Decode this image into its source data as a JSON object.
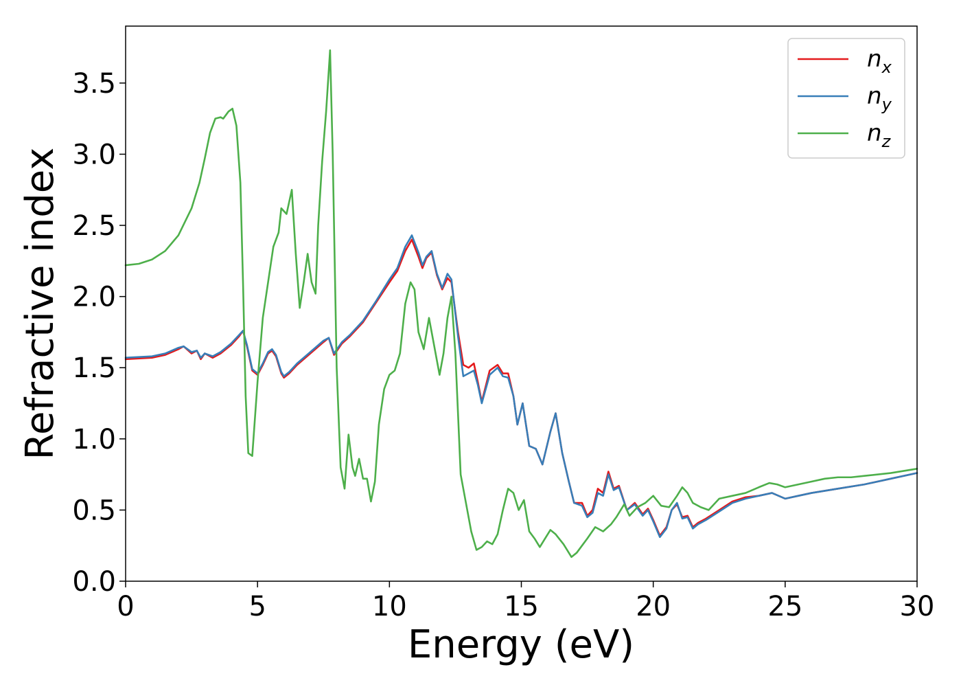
{
  "chart_data": {
    "type": "line",
    "xlabel": "Energy (eV)",
    "ylabel": "Refractive index",
    "xlim": [
      0,
      30
    ],
    "ylim": [
      0,
      3.9
    ],
    "xticks": [
      0,
      5,
      10,
      15,
      20,
      25,
      30
    ],
    "xtick_labels": [
      "0",
      "5",
      "10",
      "15",
      "20",
      "25",
      "30"
    ],
    "yticks": [
      0.0,
      0.5,
      1.0,
      1.5,
      2.0,
      2.5,
      3.0,
      3.5
    ],
    "ytick_labels": [
      "0.0",
      "0.5",
      "1.0",
      "1.5",
      "2.0",
      "2.5",
      "3.0",
      "3.5"
    ],
    "grid": false,
    "legend_position": "top-right",
    "series": [
      {
        "name": "n",
        "subscript": "x",
        "color": "#e41a1c",
        "x": [
          0,
          1,
          1.5,
          2,
          2.2,
          2.5,
          2.7,
          2.85,
          3,
          3.3,
          3.6,
          4,
          4.3,
          4.45,
          4.6,
          4.8,
          5,
          5.2,
          5.4,
          5.55,
          5.7,
          5.9,
          6,
          6.2,
          6.5,
          7,
          7.5,
          7.7,
          7.9,
          8.2,
          8.5,
          9,
          9.5,
          10,
          10.3,
          10.6,
          10.85,
          11.1,
          11.25,
          11.4,
          11.6,
          11.8,
          12,
          12.2,
          12.35,
          12.6,
          12.8,
          13,
          13.2,
          13.35,
          13.5,
          13.8,
          14.1,
          14.3,
          14.5,
          14.7,
          14.85,
          15.05,
          15.3,
          15.55,
          15.8,
          16.1,
          16.3,
          16.55,
          16.8,
          17,
          17.3,
          17.5,
          17.7,
          17.9,
          18.1,
          18.3,
          18.5,
          18.7,
          19,
          19.3,
          19.6,
          19.8,
          20,
          20.25,
          20.5,
          20.7,
          20.9,
          21.1,
          21.3,
          21.5,
          21.7,
          22,
          22.5,
          23,
          23.5,
          24,
          24.5,
          25,
          25.5,
          26,
          27,
          28,
          29,
          30
        ],
        "y": [
          1.56,
          1.57,
          1.59,
          1.63,
          1.65,
          1.6,
          1.62,
          1.56,
          1.6,
          1.57,
          1.6,
          1.66,
          1.72,
          1.76,
          1.65,
          1.48,
          1.45,
          1.52,
          1.6,
          1.62,
          1.58,
          1.46,
          1.43,
          1.46,
          1.52,
          1.6,
          1.68,
          1.71,
          1.59,
          1.67,
          1.72,
          1.82,
          1.96,
          2.1,
          2.18,
          2.32,
          2.4,
          2.28,
          2.2,
          2.27,
          2.31,
          2.15,
          2.05,
          2.13,
          2.1,
          1.75,
          1.52,
          1.5,
          1.53,
          1.4,
          1.26,
          1.48,
          1.52,
          1.46,
          1.46,
          1.3,
          1.1,
          1.25,
          0.95,
          0.93,
          0.82,
          1.05,
          1.18,
          0.9,
          0.7,
          0.55,
          0.55,
          0.46,
          0.5,
          0.65,
          0.62,
          0.77,
          0.65,
          0.67,
          0.5,
          0.55,
          0.47,
          0.51,
          0.43,
          0.32,
          0.38,
          0.5,
          0.54,
          0.45,
          0.46,
          0.38,
          0.41,
          0.44,
          0.5,
          0.56,
          0.59,
          0.6,
          0.62,
          0.58,
          0.6,
          0.62,
          0.65,
          0.68,
          0.72,
          0.76
        ]
      },
      {
        "name": "n",
        "subscript": "y",
        "color": "#377eb8",
        "x": [
          0,
          1,
          1.5,
          2,
          2.2,
          2.5,
          2.7,
          2.85,
          3,
          3.3,
          3.6,
          4,
          4.3,
          4.45,
          4.6,
          4.8,
          5,
          5.2,
          5.4,
          5.55,
          5.7,
          5.9,
          6,
          6.2,
          6.5,
          7,
          7.5,
          7.7,
          7.9,
          8.2,
          8.5,
          9,
          9.5,
          10,
          10.3,
          10.6,
          10.85,
          11.1,
          11.25,
          11.4,
          11.6,
          11.8,
          12,
          12.2,
          12.35,
          12.6,
          12.8,
          13,
          13.2,
          13.35,
          13.5,
          13.8,
          14.1,
          14.3,
          14.5,
          14.7,
          14.85,
          15.05,
          15.3,
          15.55,
          15.8,
          16.1,
          16.3,
          16.55,
          16.8,
          17,
          17.3,
          17.5,
          17.7,
          17.9,
          18.1,
          18.3,
          18.5,
          18.7,
          19,
          19.3,
          19.6,
          19.8,
          20,
          20.25,
          20.5,
          20.7,
          20.9,
          21.1,
          21.3,
          21.5,
          21.7,
          22,
          22.5,
          23,
          23.5,
          24,
          24.5,
          25,
          25.5,
          26,
          27,
          28,
          29,
          30
        ],
        "y": [
          1.57,
          1.58,
          1.6,
          1.64,
          1.65,
          1.61,
          1.62,
          1.57,
          1.6,
          1.58,
          1.61,
          1.67,
          1.73,
          1.76,
          1.66,
          1.49,
          1.46,
          1.53,
          1.61,
          1.63,
          1.59,
          1.47,
          1.44,
          1.47,
          1.53,
          1.61,
          1.69,
          1.71,
          1.6,
          1.68,
          1.73,
          1.83,
          1.97,
          2.12,
          2.2,
          2.35,
          2.43,
          2.31,
          2.22,
          2.28,
          2.32,
          2.16,
          2.06,
          2.16,
          2.12,
          1.72,
          1.44,
          1.46,
          1.48,
          1.38,
          1.25,
          1.45,
          1.5,
          1.44,
          1.43,
          1.3,
          1.1,
          1.25,
          0.95,
          0.93,
          0.82,
          1.05,
          1.18,
          0.9,
          0.7,
          0.55,
          0.53,
          0.45,
          0.48,
          0.62,
          0.6,
          0.75,
          0.64,
          0.66,
          0.5,
          0.54,
          0.46,
          0.5,
          0.42,
          0.31,
          0.37,
          0.5,
          0.55,
          0.44,
          0.45,
          0.37,
          0.4,
          0.43,
          0.49,
          0.55,
          0.58,
          0.6,
          0.62,
          0.58,
          0.6,
          0.62,
          0.65,
          0.68,
          0.72,
          0.76
        ]
      },
      {
        "name": "n",
        "subscript": "z",
        "color": "#4daf4a",
        "x": [
          0,
          0.5,
          1,
          1.5,
          2,
          2.5,
          2.8,
          3,
          3.2,
          3.4,
          3.6,
          3.7,
          3.9,
          4.05,
          4.2,
          4.35,
          4.45,
          4.55,
          4.65,
          4.8,
          5,
          5.2,
          5.4,
          5.6,
          5.8,
          5.9,
          6.1,
          6.3,
          6.45,
          6.6,
          6.75,
          6.9,
          7.05,
          7.2,
          7.3,
          7.45,
          7.6,
          7.75,
          7.85,
          8,
          8.15,
          8.3,
          8.45,
          8.6,
          8.7,
          8.85,
          9,
          9.15,
          9.3,
          9.45,
          9.6,
          9.8,
          10,
          10.2,
          10.4,
          10.6,
          10.8,
          10.95,
          11.1,
          11.3,
          11.5,
          11.7,
          11.9,
          12.05,
          12.2,
          12.35,
          12.5,
          12.7,
          12.9,
          13.1,
          13.3,
          13.5,
          13.7,
          13.9,
          14.1,
          14.3,
          14.5,
          14.7,
          14.9,
          15.1,
          15.3,
          15.5,
          15.7,
          15.9,
          16.1,
          16.3,
          16.6,
          16.9,
          17.1,
          17.3,
          17.5,
          17.8,
          18.1,
          18.4,
          18.6,
          18.9,
          19.1,
          19.4,
          19.7,
          20,
          20.3,
          20.6,
          20.9,
          21.1,
          21.3,
          21.5,
          21.8,
          22.1,
          22.5,
          23,
          23.5,
          24,
          24.4,
          24.7,
          25,
          25.5,
          26,
          26.5,
          27,
          27.5,
          28,
          29,
          30
        ],
        "y": [
          2.22,
          2.23,
          2.26,
          2.32,
          2.43,
          2.62,
          2.8,
          2.97,
          3.15,
          3.25,
          3.26,
          3.25,
          3.3,
          3.32,
          3.2,
          2.8,
          2.1,
          1.3,
          0.9,
          0.88,
          1.4,
          1.85,
          2.1,
          2.35,
          2.45,
          2.62,
          2.58,
          2.75,
          2.3,
          1.92,
          2.1,
          2.3,
          2.1,
          2.02,
          2.5,
          2.95,
          3.3,
          3.73,
          3.0,
          1.5,
          0.8,
          0.65,
          1.03,
          0.8,
          0.74,
          0.86,
          0.72,
          0.72,
          0.56,
          0.7,
          1.1,
          1.35,
          1.45,
          1.48,
          1.6,
          1.95,
          2.1,
          2.05,
          1.75,
          1.63,
          1.85,
          1.65,
          1.45,
          1.6,
          1.85,
          2.0,
          1.6,
          0.75,
          0.55,
          0.35,
          0.22,
          0.24,
          0.28,
          0.26,
          0.33,
          0.5,
          0.65,
          0.62,
          0.5,
          0.57,
          0.35,
          0.3,
          0.24,
          0.3,
          0.36,
          0.33,
          0.26,
          0.17,
          0.2,
          0.25,
          0.3,
          0.38,
          0.35,
          0.4,
          0.45,
          0.54,
          0.46,
          0.52,
          0.55,
          0.6,
          0.53,
          0.52,
          0.6,
          0.66,
          0.62,
          0.55,
          0.52,
          0.5,
          0.58,
          0.6,
          0.62,
          0.66,
          0.69,
          0.68,
          0.66,
          0.68,
          0.7,
          0.72,
          0.73,
          0.73,
          0.74,
          0.76,
          0.79
        ]
      }
    ]
  }
}
